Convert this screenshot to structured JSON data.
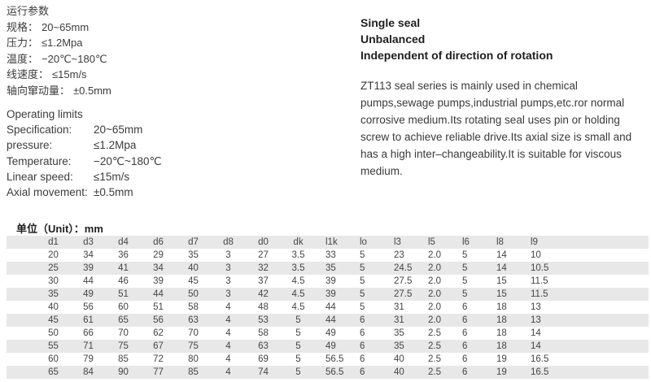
{
  "cn_params": {
    "title": "运行参数",
    "items": [
      {
        "label": "规格：",
        "value": "20~65mm"
      },
      {
        "label": "压力：",
        "value": "≤1.2Mpa"
      },
      {
        "label": "温度：",
        "value": "−20℃~180℃"
      },
      {
        "label": "线速度：",
        "value": "≤15m/s"
      },
      {
        "label": "轴向窜动量：",
        "value": "±0.5mm"
      }
    ]
  },
  "en_params": {
    "title": "Operating limits",
    "items": [
      {
        "label": "Specification:",
        "value": "20~65mm"
      },
      {
        "label": "pressure:",
        "value": "≤1.2Mpa"
      },
      {
        "label": "Temperature:",
        "value": "−20℃~180℃"
      },
      {
        "label": "Linear speed:",
        "value": "≤15m/s"
      },
      {
        "label": "Axial movement:",
        "value": "±0.5mm"
      }
    ]
  },
  "features": [
    "Single seal",
    "Unbalanced",
    "Independent of direction of rotation"
  ],
  "description": "ZT113 seal series is mainly used in chemical pumps,sewage pumps,industrial pumps,etc.ror normal corrosive medium.Its rotating seal uses pin or holding screw to achieve reliable drive.Its axial size is small and has a high inter–changeability.It is suitable for viscous medium.",
  "unit_label": "单位（Unit）：mm",
  "table": {
    "columns": [
      "d1",
      "d3",
      "d4",
      "d6",
      "d7",
      "d8",
      "d0",
      "dk",
      "l1k",
      "lo",
      "l3",
      "l5",
      "l6",
      "l8",
      "l9"
    ],
    "rows": [
      [
        "20",
        "34",
        "36",
        "29",
        "35",
        "3",
        "27",
        "3.5",
        "33",
        "5",
        "23",
        "2.0",
        "5",
        "14",
        "10"
      ],
      [
        "25",
        "39",
        "41",
        "34",
        "40",
        "3",
        "32",
        "3.5",
        "35",
        "5",
        "24.5",
        "2.0",
        "5",
        "14",
        "10.5"
      ],
      [
        "30",
        "44",
        "46",
        "39",
        "45",
        "3",
        "37",
        "4.5",
        "39",
        "5",
        "27.5",
        "2.0",
        "5",
        "15",
        "11.5"
      ],
      [
        "35",
        "49",
        "51",
        "44",
        "50",
        "3",
        "42",
        "4.5",
        "39",
        "5",
        "27.5",
        "2.0",
        "5",
        "15",
        "11.5"
      ],
      [
        "40",
        "56",
        "60",
        "51",
        "58",
        "4",
        "48",
        "4.5",
        "44",
        "5",
        "31",
        "2.0",
        "6",
        "18",
        "13"
      ],
      [
        "45",
        "61",
        "65",
        "56",
        "63",
        "4",
        "53",
        "5",
        "44",
        "6",
        "31",
        "2.0",
        "6",
        "18",
        "13"
      ],
      [
        "50",
        "66",
        "70",
        "62",
        "70",
        "4",
        "58",
        "5",
        "49",
        "6",
        "35",
        "2.5",
        "6",
        "18",
        "14"
      ],
      [
        "55",
        "71",
        "75",
        "67",
        "75",
        "4",
        "63",
        "5",
        "49",
        "6",
        "35",
        "2.5",
        "6",
        "18",
        "14"
      ],
      [
        "60",
        "79",
        "85",
        "72",
        "80",
        "4",
        "69",
        "5",
        "56.5",
        "6",
        "40",
        "2.5",
        "6",
        "19",
        "16.5"
      ],
      [
        "65",
        "84",
        "90",
        "77",
        "85",
        "4",
        "74",
        "5",
        "56.5",
        "6",
        "40",
        "2.5",
        "6",
        "19",
        "16.5"
      ]
    ]
  },
  "colors": {
    "stripe": "#e8e8e8",
    "body_text": "#3a3a3a",
    "heading_text": "#1f1f1f"
  }
}
